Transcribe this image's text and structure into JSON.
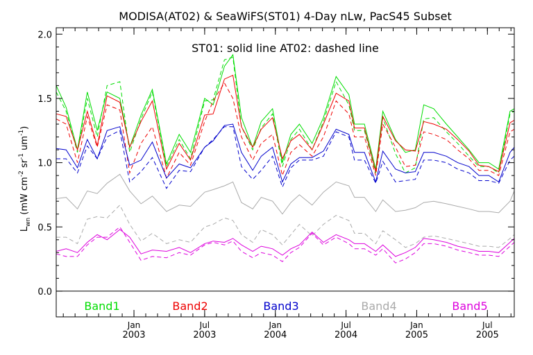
{
  "chart_data": {
    "type": "line",
    "title": "MODISA(AT02) & SeaWiFS(ST01) 4-Day nLw, PacS45 Subset",
    "annotation": "ST01: solid line   AT02: dashed line",
    "ylabel": "L_wn (mW cm^-2 sr^-1 um^-1)",
    "ylabel_main": "L",
    "ylabel_sub": "wn",
    "ylabel_rest": " (mW cm",
    "ylabel_sup1": "-2",
    "ylabel_mid": " sr",
    "ylabel_sup2": "-1",
    "ylabel_mid2": " um",
    "ylabel_sup3": "-1",
    "ylabel_end": ")",
    "ylim": [
      -0.2,
      2.05
    ],
    "yticks": [
      0.0,
      0.5,
      1.0,
      1.5,
      2.0
    ],
    "ytick_labels": [
      "0.0",
      "0.5",
      "1.0",
      "1.5",
      "2.0"
    ],
    "xlim": [
      2002.45,
      2005.69
    ],
    "xticks": [
      {
        "x": 2003.0,
        "month": "Jan",
        "year": "2003"
      },
      {
        "x": 2003.5,
        "month": "Jul",
        "year": "2003"
      },
      {
        "x": 2004.0,
        "month": "Jan",
        "year": "2004"
      },
      {
        "x": 2004.5,
        "month": "Jul",
        "year": "2004"
      },
      {
        "x": 2005.0,
        "month": "Jan",
        "year": "2005"
      },
      {
        "x": 2005.5,
        "month": "Jul",
        "year": "2005"
      }
    ],
    "x": [
      2002.45,
      2002.52,
      2002.6,
      2002.67,
      2002.74,
      2002.81,
      2002.9,
      2002.97,
      2003.05,
      2003.13,
      2003.23,
      2003.32,
      2003.4,
      2003.5,
      2003.56,
      2003.64,
      2003.7,
      2003.76,
      2003.84,
      2003.9,
      2003.98,
      2004.05,
      2004.11,
      2004.17,
      2004.26,
      2004.34,
      2004.43,
      2004.52,
      2004.56,
      2004.63,
      2004.71,
      2004.76,
      2004.85,
      2004.92,
      2004.99,
      2005.05,
      2005.12,
      2005.21,
      2005.29,
      2005.37,
      2005.44,
      2005.51,
      2005.58,
      2005.66,
      2005.69
    ],
    "series": [
      {
        "name": "Band1",
        "color": "#00dd00",
        "style": "solid",
        "values": [
          1.6,
          1.43,
          1.1,
          1.55,
          1.25,
          1.55,
          1.5,
          1.12,
          1.37,
          1.57,
          0.99,
          1.22,
          1.08,
          1.5,
          1.45,
          1.75,
          1.84,
          1.35,
          1.12,
          1.32,
          1.42,
          1.0,
          1.22,
          1.3,
          1.15,
          1.35,
          1.67,
          1.53,
          1.3,
          1.3,
          0.95,
          1.4,
          1.18,
          1.08,
          1.1,
          1.45,
          1.42,
          1.3,
          1.2,
          1.1,
          1.0,
          1.0,
          0.95,
          1.4,
          1.42
        ]
      },
      {
        "name": "Band1",
        "color": "#00dd00",
        "style": "dashed",
        "values": [
          1.55,
          1.4,
          1.08,
          1.5,
          1.2,
          1.6,
          1.63,
          1.08,
          1.34,
          1.55,
          0.97,
          1.18,
          1.03,
          1.48,
          1.49,
          1.8,
          1.82,
          1.28,
          1.1,
          1.27,
          1.38,
          0.97,
          1.18,
          1.26,
          1.1,
          1.32,
          1.63,
          1.45,
          1.25,
          1.25,
          0.92,
          1.35,
          1.07,
          0.92,
          0.96,
          1.34,
          1.35,
          1.24,
          1.15,
          1.05,
          0.97,
          0.97,
          0.92,
          1.38,
          1.4
        ]
      },
      {
        "name": "Band2",
        "color": "#ee0000",
        "style": "solid",
        "values": [
          1.38,
          1.36,
          1.1,
          1.4,
          1.13,
          1.52,
          1.47,
          1.12,
          1.32,
          1.48,
          0.95,
          1.15,
          1.02,
          1.37,
          1.38,
          1.65,
          1.68,
          1.28,
          1.12,
          1.26,
          1.35,
          1.03,
          1.17,
          1.22,
          1.1,
          1.3,
          1.54,
          1.48,
          1.27,
          1.27,
          0.93,
          1.36,
          1.17,
          1.1,
          1.09,
          1.32,
          1.3,
          1.26,
          1.18,
          1.09,
          0.98,
          0.97,
          0.93,
          1.31,
          1.33
        ]
      },
      {
        "name": "Band2",
        "color": "#ee0000",
        "style": "dashed",
        "values": [
          1.34,
          1.3,
          1.0,
          1.36,
          1.12,
          1.45,
          1.41,
          0.92,
          1.15,
          1.28,
          0.88,
          1.08,
          0.98,
          1.32,
          1.48,
          1.62,
          1.5,
          1.2,
          1.02,
          1.15,
          1.22,
          0.9,
          1.08,
          1.14,
          1.05,
          1.2,
          1.48,
          1.38,
          1.2,
          1.2,
          0.9,
          1.3,
          1.12,
          0.97,
          0.98,
          1.24,
          1.22,
          1.18,
          1.1,
          1.03,
          0.94,
          0.94,
          0.9,
          1.24,
          1.26
        ]
      },
      {
        "name": "Band3",
        "color": "#0000cc",
        "style": "solid",
        "values": [
          1.11,
          1.1,
          0.96,
          1.18,
          1.03,
          1.25,
          1.28,
          0.98,
          1.02,
          1.16,
          0.88,
          0.99,
          0.96,
          1.12,
          1.17,
          1.29,
          1.3,
          1.08,
          0.94,
          1.05,
          1.12,
          0.85,
          0.99,
          1.04,
          1.04,
          1.09,
          1.26,
          1.22,
          1.08,
          1.08,
          0.85,
          1.09,
          0.95,
          0.92,
          0.93,
          1.08,
          1.08,
          1.05,
          1.0,
          0.97,
          0.9,
          0.9,
          0.85,
          1.08,
          1.12
        ]
      },
      {
        "name": "Band3",
        "color": "#0000cc",
        "style": "dashed",
        "values": [
          1.03,
          1.03,
          0.92,
          1.13,
          1.03,
          1.2,
          1.25,
          0.85,
          0.93,
          1.04,
          0.8,
          0.94,
          0.93,
          1.12,
          1.18,
          1.28,
          1.28,
          0.97,
          0.87,
          0.94,
          1.05,
          0.81,
          0.96,
          1.02,
          1.02,
          1.05,
          1.24,
          1.2,
          1.02,
          1.02,
          0.84,
          1.01,
          0.85,
          0.86,
          0.87,
          1.02,
          1.02,
          1.0,
          0.95,
          0.92,
          0.86,
          0.86,
          0.84,
          1.02,
          1.05
        ]
      },
      {
        "name": "Band4",
        "color": "#aaaaaa",
        "style": "solid",
        "values": [
          0.72,
          0.73,
          0.64,
          0.78,
          0.76,
          0.84,
          0.91,
          0.78,
          0.68,
          0.74,
          0.62,
          0.67,
          0.66,
          0.77,
          0.79,
          0.82,
          0.85,
          0.69,
          0.64,
          0.73,
          0.7,
          0.6,
          0.69,
          0.75,
          0.67,
          0.77,
          0.85,
          0.82,
          0.73,
          0.73,
          0.62,
          0.71,
          0.62,
          0.63,
          0.65,
          0.69,
          0.7,
          0.68,
          0.66,
          0.64,
          0.62,
          0.62,
          0.61,
          0.7,
          0.78
        ]
      },
      {
        "name": "Band4",
        "color": "#aaaaaa",
        "style": "dashed",
        "values": [
          0.42,
          0.42,
          0.37,
          0.56,
          0.58,
          0.57,
          0.67,
          0.52,
          0.39,
          0.45,
          0.37,
          0.4,
          0.38,
          0.5,
          0.52,
          0.57,
          0.55,
          0.44,
          0.38,
          0.48,
          0.44,
          0.36,
          0.44,
          0.52,
          0.43,
          0.52,
          0.59,
          0.55,
          0.45,
          0.45,
          0.37,
          0.47,
          0.4,
          0.34,
          0.37,
          0.42,
          0.43,
          0.41,
          0.39,
          0.37,
          0.35,
          0.35,
          0.34,
          0.41,
          0.44
        ]
      },
      {
        "name": "Band5",
        "color": "#dd00dd",
        "style": "solid",
        "values": [
          0.31,
          0.33,
          0.3,
          0.38,
          0.44,
          0.4,
          0.48,
          0.42,
          0.29,
          0.32,
          0.31,
          0.34,
          0.3,
          0.37,
          0.39,
          0.38,
          0.41,
          0.36,
          0.31,
          0.35,
          0.33,
          0.28,
          0.33,
          0.36,
          0.46,
          0.38,
          0.44,
          0.4,
          0.37,
          0.37,
          0.31,
          0.36,
          0.27,
          0.3,
          0.34,
          0.41,
          0.4,
          0.38,
          0.35,
          0.33,
          0.31,
          0.31,
          0.3,
          0.38,
          0.41
        ]
      },
      {
        "name": "Band5",
        "color": "#dd00dd",
        "style": "dashed",
        "values": [
          0.29,
          0.27,
          0.27,
          0.36,
          0.42,
          0.42,
          0.5,
          0.38,
          0.24,
          0.27,
          0.26,
          0.3,
          0.28,
          0.36,
          0.38,
          0.36,
          0.39,
          0.31,
          0.26,
          0.3,
          0.28,
          0.23,
          0.3,
          0.34,
          0.45,
          0.36,
          0.42,
          0.37,
          0.33,
          0.33,
          0.28,
          0.33,
          0.22,
          0.25,
          0.3,
          0.37,
          0.37,
          0.35,
          0.32,
          0.3,
          0.28,
          0.28,
          0.27,
          0.35,
          0.38
        ]
      }
    ],
    "legend": [
      {
        "label": "Band1",
        "color": "#00dd00"
      },
      {
        "label": "Band2",
        "color": "#ee0000"
      },
      {
        "label": "Band3",
        "color": "#0000cc"
      },
      {
        "label": "Band4",
        "color": "#aaaaaa"
      },
      {
        "label": "Band5",
        "color": "#dd00dd"
      }
    ],
    "legend_placement": "bottom-inside",
    "zero_line": true,
    "grid": false
  }
}
